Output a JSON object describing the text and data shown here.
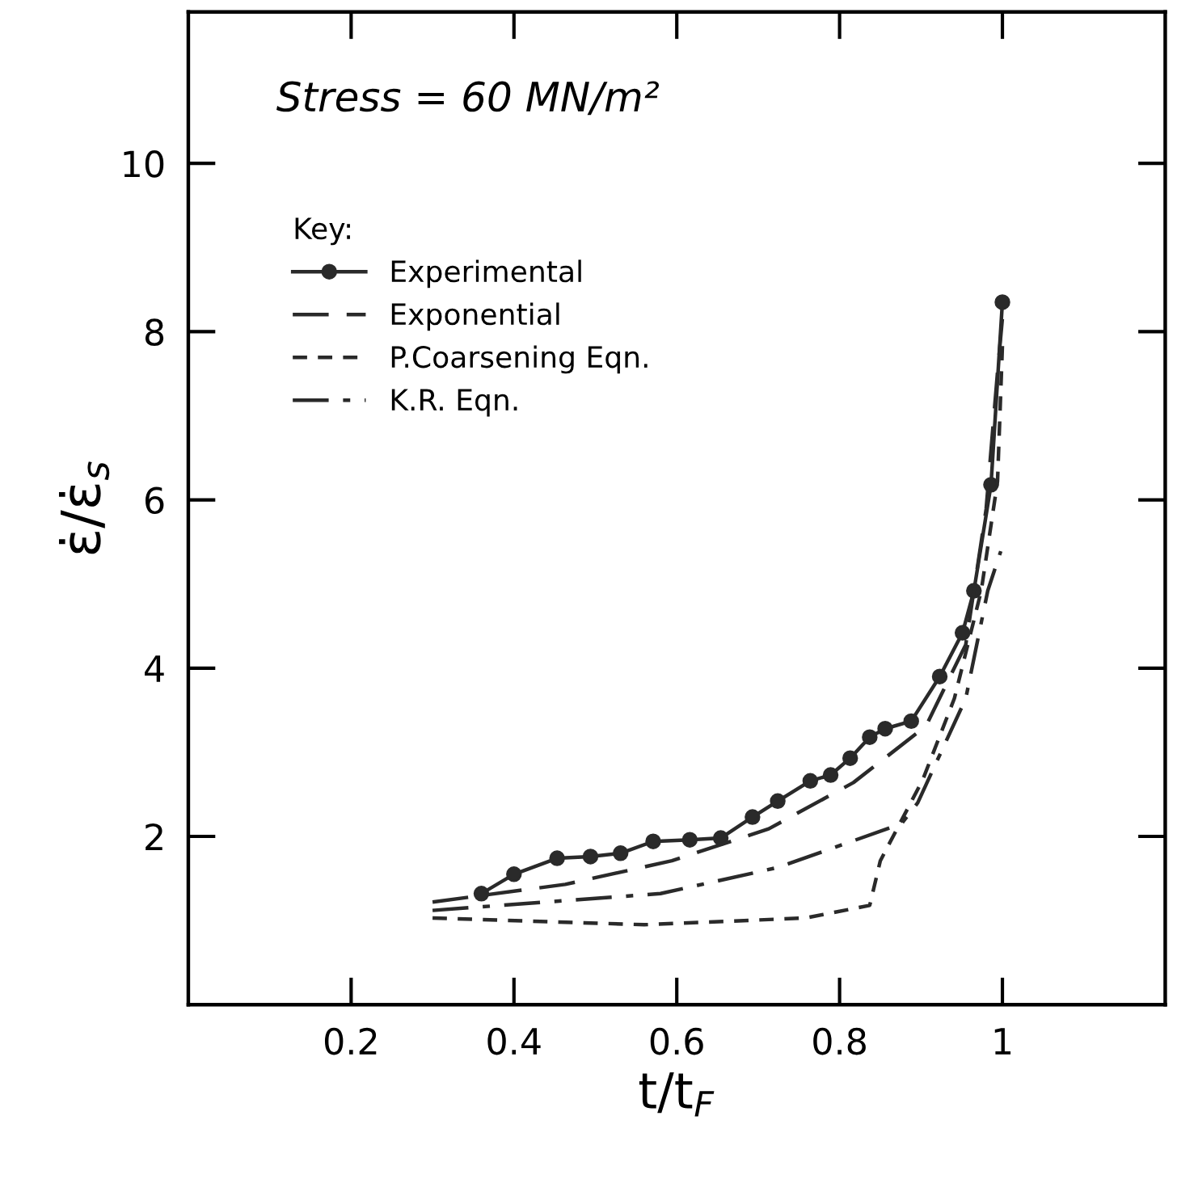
{
  "chart_data": {
    "type": "line",
    "xlabel": "t/t$_{F}$",
    "ylabel": "ε̇/ε̇$_{s}$",
    "annotations": [
      "Stress = 60 MN/m²"
    ],
    "legend_title": "Key:",
    "legend": "top left",
    "grid": false,
    "xlim": [
      0,
      1.2
    ],
    "ylim": [
      0,
      11.8
    ],
    "xticks": [
      0.2,
      0.4,
      0.6,
      0.8,
      1
    ],
    "yticks": [
      2,
      4,
      6,
      8,
      10
    ],
    "series": [
      {
        "name": "Experimental",
        "color": "#2a2a2a",
        "marker": "circle",
        "line_style": "solid",
        "x": [
          0.36,
          0.4,
          0.453,
          0.494,
          0.531,
          0.571,
          0.616,
          0.654,
          0.693,
          0.724,
          0.764,
          0.789,
          0.813,
          0.837,
          0.856,
          0.888,
          0.923,
          0.951,
          0.965,
          0.986,
          1.0
        ],
        "values": [
          1.32,
          1.55,
          1.74,
          1.76,
          1.8,
          1.94,
          1.96,
          1.98,
          2.23,
          2.42,
          2.66,
          2.73,
          2.93,
          3.18,
          3.28,
          3.37,
          3.9,
          4.42,
          4.92,
          6.18,
          8.35
        ]
      },
      {
        "name": "Exponential",
        "color": "#2a2a2a",
        "marker": "none",
        "line_style": "longdash",
        "x": [
          0.3,
          0.463,
          0.594,
          0.713,
          0.817,
          0.906,
          0.955,
          0.98,
          0.994,
          1.0
        ],
        "values": [
          1.22,
          1.43,
          1.71,
          2.09,
          2.64,
          3.31,
          4.28,
          5.89,
          7.52,
          8.16
        ]
      },
      {
        "name": "P.Coarsening Eqn.",
        "color": "#2a2a2a",
        "marker": "none",
        "line_style": "dashed",
        "x": [
          0.3,
          0.56,
          0.758,
          0.837,
          0.85,
          0.902,
          0.941,
          0.974,
          0.994,
          1.0
        ],
        "values": [
          1.03,
          0.95,
          1.03,
          1.18,
          1.71,
          2.67,
          3.64,
          4.92,
          6.22,
          7.83
        ]
      },
      {
        "name": "K.R. Eqn.",
        "color": "#2a2a2a",
        "marker": "none",
        "line_style": "dashdot",
        "x": [
          0.3,
          0.58,
          0.724,
          0.876,
          0.896,
          0.955,
          0.982,
          0.998
        ],
        "values": [
          1.12,
          1.32,
          1.63,
          2.15,
          2.4,
          3.64,
          4.92,
          5.39
        ]
      }
    ]
  }
}
